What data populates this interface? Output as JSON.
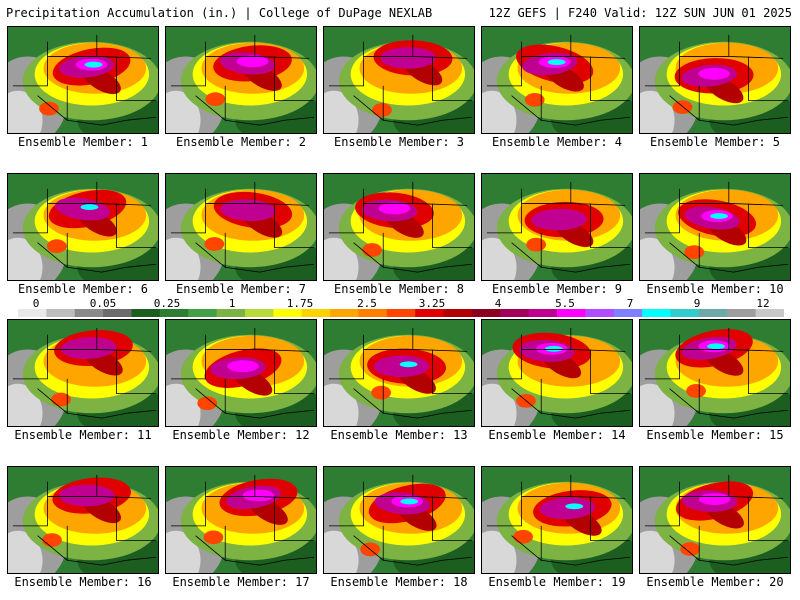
{
  "header": {
    "title": "Precipitation Accumulation (in.) | College of DuPage NEXLAB",
    "valid": "12Z GEFS | F240 Valid: 12Z SUN JUN 01 2025"
  },
  "colorbar": {
    "tick_labels": [
      "0",
      "0.05",
      "0.25",
      "1",
      "1.75",
      "2.5",
      "3.25",
      "4",
      "5.5",
      "7",
      "9",
      "12"
    ],
    "colors": [
      "#e8e8e8",
      "#bdbdbd",
      "#8a8a8a",
      "#6b6b6b",
      "#1b5e20",
      "#2e7d32",
      "#43a047",
      "#7cb342",
      "#b7d93a",
      "#ffff00",
      "#ffd200",
      "#ffa500",
      "#ff7f00",
      "#ff4500",
      "#e00000",
      "#b30000",
      "#8b0020",
      "#a0005a",
      "#c00090",
      "#ff00ff",
      "#b24cff",
      "#7f7fff",
      "#00ffff",
      "#33cccc",
      "#6fa8a8",
      "#9e9e9e",
      "#c8c8c8"
    ]
  },
  "panels": [
    {
      "label": "Ensemble Member: 1"
    },
    {
      "label": "Ensemble Member: 2"
    },
    {
      "label": "Ensemble Member: 3"
    },
    {
      "label": "Ensemble Member: 4"
    },
    {
      "label": "Ensemble Member: 5"
    },
    {
      "label": "Ensemble Member: 6"
    },
    {
      "label": "Ensemble Member: 7"
    },
    {
      "label": "Ensemble Member: 8"
    },
    {
      "label": "Ensemble Member: 9"
    },
    {
      "label": "Ensemble Member: 10"
    },
    {
      "label": "Ensemble Member: 11"
    },
    {
      "label": "Ensemble Member: 12"
    },
    {
      "label": "Ensemble Member: 13"
    },
    {
      "label": "Ensemble Member: 14"
    },
    {
      "label": "Ensemble Member: 15"
    },
    {
      "label": "Ensemble Member: 16"
    },
    {
      "label": "Ensemble Member: 17"
    },
    {
      "label": "Ensemble Member: 18"
    },
    {
      "label": "Ensemble Member: 19"
    },
    {
      "label": "Ensemble Member: 20"
    }
  ]
}
